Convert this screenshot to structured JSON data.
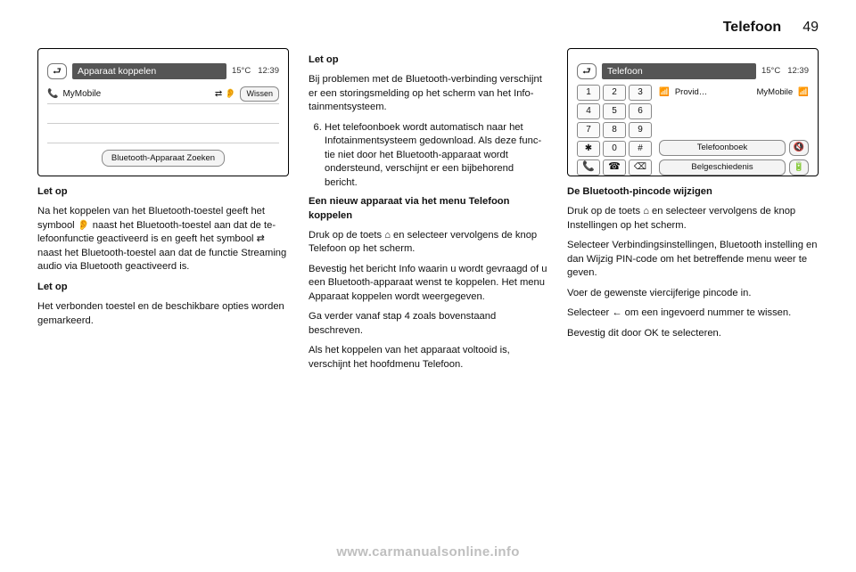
{
  "header": {
    "title": "Telefoon",
    "page": "49"
  },
  "shot1": {
    "title": "Apparaat koppelen",
    "temp": "15°C",
    "time": "12:39",
    "back_glyph": "⮐",
    "phone_glyph": "📞",
    "device": "MyMobile",
    "dev_icons": "⇄ 👂",
    "clear_label": "Wissen",
    "search_label": "Bluetooth-Apparaat Zoeken"
  },
  "col1": {
    "lead1": "Let op",
    "p1": "Na het koppelen van het Bluetooth-toestel geeft het symbool 👂 naast het Bluetooth-toestel aan dat de te­lefoonfunctie geactiveerd is en geeft het symbool ⇄ naast het Bluetooth-toestel aan dat de functie Streaming audio via Bluetooth geactiveerd is.",
    "lead2": "Let op",
    "p2": "Het verbonden toestel en de be­schikbare opties worden gemar­keerd."
  },
  "col2": {
    "lead1": "Let op",
    "p1": "Bij problemen met de Bluetooth-ver­binding verschijnt er een storings­melding op het scherm van het Info­tainmentsysteem.",
    "li6": "Het telefoonboek wordt automa­tisch naar het Infotainmentsys­teem gedownload. Als deze func­tie niet door het Bluetooth-appa­raat wordt ondersteund, verschijnt er een bijbehorend bericht.",
    "sub": "Een nieuw apparaat via het menu Telefoon koppelen",
    "p2": "Druk op de toets ⌂ en selecteer ver­volgens de knop Telefoon op het scherm.",
    "p3": "Bevestig het bericht Info waarin u wordt gevraagd of u een Bluetooth-apparaat wenst te koppelen. Het menu Apparaat koppelen wordt weer­gegeven.",
    "p4": "Ga verder vanaf stap 4 zoals boven­staand beschreven.",
    "p5": "Als het koppelen van het apparaat voltooid is, verschijnt het hoofdmenu Telefoon."
  },
  "shot2": {
    "title": "Telefoon",
    "temp": "15°C",
    "time": "12:39",
    "back_glyph": "⮐",
    "keys": [
      "1",
      "2",
      "3",
      "4",
      "5",
      "6",
      "7",
      "8",
      "9",
      "✱",
      "0",
      "#",
      "📞",
      "☎",
      "⌫"
    ],
    "sig_glyph": "📶",
    "provider": "Provid…",
    "device": "MyMobile",
    "bt_glyph": "📶",
    "btn1": "Telefoonboek",
    "btn2": "Belgeschiedenis",
    "mute_glyph": "🔇",
    "batt_glyph": "🔋"
  },
  "col3": {
    "sub1": "De Bluetooth-pincode wijzigen",
    "p1": "Druk op de toets ⌂ en selecteer ver­volgens de knop Instellingen op het scherm.",
    "p2": "Selecteer Verbindingsinstellingen, Bluetooth instelling en dan Wijzig PIN-code om het betreffende menu weer te geven.",
    "p3": "Voer de gewenste viercijferige pin­code in.",
    "p4": "Selecteer ← om een ingevoerd num­mer te wissen.",
    "p5": "Bevestig dit door OK te selecteren."
  },
  "watermark": "www.carmanualsonline.info"
}
